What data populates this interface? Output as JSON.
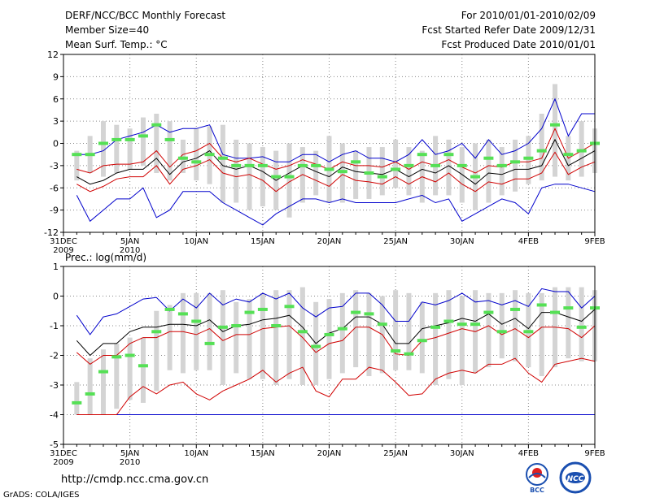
{
  "header": {
    "title": "DERF/NCC/BCC Monthly Forecast",
    "member_size": "Member Size=40",
    "variable": "Mean Surf. Temp.: °C",
    "period": "For 2010/01/01-2010/02/09",
    "fcst_started": "Fcst Started Refer Date 2009/12/31",
    "fcst_produced": "Fcst Produced Date 2010/01/01"
  },
  "footer": {
    "url": "http://cmdp.ncc.cma.gov.cn",
    "credit": "GrADS: COLA/IGES",
    "logo_left_text": "BCC",
    "logo_right_text": "NCC"
  },
  "colors": {
    "box": "#d4d4d4",
    "median": "#55e055",
    "mean": "#000000",
    "sd": "#d00000",
    "extreme": "#0000cc"
  },
  "chart_data": [
    {
      "type": "box",
      "title": "Mean Surf. Temp.: °C",
      "xlabel": "",
      "ylabel": "°C",
      "ylim": [
        -12,
        12
      ],
      "yticks": [
        -12,
        -9,
        -6,
        -3,
        0,
        3,
        6,
        9,
        12
      ],
      "xtick_labels": [
        {
          "day": 0,
          "label": "31DEC",
          "label2": "2009"
        },
        {
          "day": 5,
          "label": "5JAN",
          "label2": "2010"
        },
        {
          "day": 10,
          "label": "10JAN"
        },
        {
          "day": 15,
          "label": "15JAN"
        },
        {
          "day": 20,
          "label": "20JAN"
        },
        {
          "day": 25,
          "label": "25JAN"
        },
        {
          "day": 30,
          "label": "30JAN"
        },
        {
          "day": 35,
          "label": "4FEB"
        },
        {
          "day": 40,
          "label": "9FEB"
        }
      ],
      "days": [
        1,
        2,
        3,
        4,
        5,
        6,
        7,
        8,
        9,
        10,
        11,
        12,
        13,
        14,
        15,
        16,
        17,
        18,
        19,
        20,
        21,
        22,
        23,
        24,
        25,
        26,
        27,
        28,
        29,
        30,
        31,
        32,
        33,
        34,
        35,
        36,
        37,
        38,
        39,
        40
      ],
      "box_top": [
        -1,
        1,
        3,
        2.5,
        2,
        3.5,
        4,
        3,
        0.5,
        2,
        2.3,
        2.5,
        0.5,
        0,
        -0.5,
        -1,
        0,
        -0.5,
        -1,
        1,
        0,
        -1,
        -0.5,
        -0.5,
        0.5,
        -0.5,
        -1,
        1,
        0.5,
        -0.5,
        0,
        0.5,
        -0.5,
        0.5,
        1,
        4,
        8,
        1,
        3,
        2
      ],
      "box_bottom": [
        -5,
        -4,
        -4.5,
        -4,
        -3.5,
        -3,
        -4,
        -5,
        -4,
        -5,
        -5.5,
        -8,
        -8,
        -9,
        -8.5,
        -9,
        -10,
        -8,
        -7,
        -8,
        -8,
        -7.5,
        -7.5,
        -7,
        -6,
        -7,
        -8,
        -7,
        -7,
        -8,
        -9,
        -8,
        -7,
        -6.5,
        -5.5,
        -5,
        -4.5,
        -5,
        -4.5,
        -4
      ],
      "median": [
        -1.5,
        -1.5,
        0,
        0.5,
        0.5,
        1,
        2.5,
        0.5,
        -2,
        -2.5,
        -1.5,
        -2,
        -3,
        -3,
        -3,
        -4.5,
        -4.5,
        -3,
        -3,
        -3.5,
        -3.8,
        -2.5,
        -4,
        -4.5,
        -3.5,
        -3,
        -1.5,
        -3,
        -1.5,
        -3,
        -4.5,
        -2,
        -3,
        -2.5,
        -2,
        -1,
        2.5,
        -1.5,
        -1,
        0
      ],
      "mean": [
        -4.5,
        -5.5,
        -5,
        -4,
        -3.5,
        -3.5,
        -2,
        -4.2,
        -2.5,
        -2,
        -1,
        -3,
        -3.5,
        -3,
        -3.8,
        -5,
        -4,
        -3,
        -3.8,
        -4.5,
        -3.2,
        -3.8,
        -4,
        -4.2,
        -3.5,
        -4.5,
        -3.5,
        -4,
        -3,
        -4.2,
        -5.5,
        -4,
        -4.2,
        -3.5,
        -3.5,
        -3,
        0.5,
        -3,
        -2,
        -1
      ],
      "sd_upper": [
        -3.5,
        -4,
        -3,
        -2.8,
        -2.8,
        -2.5,
        -1,
        -3.2,
        -1.5,
        -1,
        0,
        -2,
        -2.5,
        -2,
        -2.8,
        -3.5,
        -3,
        -2.2,
        -2.8,
        -3.5,
        -2.5,
        -3,
        -3,
        -3.2,
        -2.5,
        -3.5,
        -2.5,
        -3,
        -2.2,
        -3.2,
        -4,
        -3,
        -3.2,
        -2.5,
        -2.5,
        -2,
        2,
        -2,
        -1,
        0
      ],
      "sd_lower": [
        -5.5,
        -6.5,
        -5.8,
        -4.8,
        -4.5,
        -4.5,
        -3,
        -5.5,
        -3.5,
        -3,
        -2.2,
        -4,
        -4.5,
        -4.2,
        -5,
        -6.5,
        -5.2,
        -4.2,
        -5,
        -5.8,
        -4.2,
        -5,
        -5.2,
        -5.5,
        -4.5,
        -5.5,
        -4.5,
        -5.2,
        -4,
        -5.5,
        -6.5,
        -5.2,
        -5.5,
        -4.8,
        -4.8,
        -4,
        -1.2,
        -4.2,
        -3.2,
        -2.5
      ],
      "max": [
        -1.5,
        -1.5,
        -1,
        0.5,
        1,
        1.5,
        2.5,
        1.5,
        2,
        2,
        2.5,
        -1.5,
        -2,
        -2,
        -1.8,
        -2.5,
        -2.5,
        -1.5,
        -1.5,
        -2.5,
        -1.5,
        -1,
        -2,
        -2,
        -2.5,
        -1.5,
        0.5,
        -1.5,
        -1,
        0,
        -2,
        0.5,
        -1.5,
        -1,
        0,
        2,
        6,
        1,
        4,
        4
      ],
      "min": [
        -7,
        -10.5,
        -9,
        -7.5,
        -7.5,
        -6,
        -10,
        -9,
        -6.5,
        -6.5,
        -6.5,
        -8,
        -9,
        -10,
        -11,
        -9.5,
        -8.5,
        -7.5,
        -7.5,
        -8,
        -7.5,
        -8,
        -8,
        -8,
        -8,
        -7.5,
        -7,
        -8,
        -7.5,
        -10.5,
        -9.5,
        -8.5,
        -7.5,
        -8,
        -9.5,
        -6,
        -5.5,
        -5.5,
        -6,
        -6.5
      ]
    },
    {
      "type": "box",
      "title": "Prec.: log(mm/d)",
      "xlabel": "",
      "ylabel": "log(mm/d)",
      "ylim": [
        -5,
        1
      ],
      "yticks": [
        -5,
        -4,
        -3,
        -2,
        -1,
        0,
        1
      ],
      "xtick_labels": [
        {
          "day": 0,
          "label": "31DEC",
          "label2": "2009"
        },
        {
          "day": 5,
          "label": "5JAN",
          "label2": "2010"
        },
        {
          "day": 10,
          "label": "10JAN"
        },
        {
          "day": 15,
          "label": "15JAN"
        },
        {
          "day": 20,
          "label": "20JAN"
        },
        {
          "day": 25,
          "label": "25JAN"
        },
        {
          "day": 30,
          "label": "30JAN"
        },
        {
          "day": 35,
          "label": "4FEB"
        },
        {
          "day": 40,
          "label": "9FEB"
        }
      ],
      "days": [
        1,
        2,
        3,
        4,
        5,
        6,
        7,
        8,
        9,
        10,
        11,
        12,
        13,
        14,
        15,
        16,
        17,
        18,
        19,
        20,
        21,
        22,
        23,
        24,
        25,
        26,
        27,
        28,
        29,
        30,
        31,
        32,
        33,
        34,
        35,
        36,
        37,
        38,
        39,
        40
      ],
      "box_top": [
        -2.9,
        -2.1,
        -1.8,
        -1.6,
        -1.4,
        -1.4,
        -0.5,
        -0.3,
        0.1,
        0.1,
        0.1,
        0.2,
        -0.2,
        -0.1,
        0.1,
        0.2,
        0.2,
        0.3,
        -0.2,
        -0.1,
        0.1,
        0.2,
        0.1,
        0,
        0.2,
        0.1,
        -0.2,
        0.1,
        0.2,
        0,
        0.2,
        0.1,
        0.1,
        0.2,
        0.1,
        0.1,
        0.3,
        0.3,
        0.3,
        0.2
      ],
      "box_bottom": [
        -4,
        -4,
        -4,
        -3.8,
        -3.5,
        -3.6,
        -3.2,
        -2.5,
        -2.6,
        -2.5,
        -2.5,
        -3,
        -2.6,
        -2.8,
        -2.8,
        -3,
        -2.8,
        -3,
        -3,
        -2.8,
        -2.6,
        -2.4,
        -2.7,
        -2.6,
        -2.5,
        -2.5,
        -2.6,
        -3,
        -2.8,
        -3,
        -2.6,
        -2.4,
        -2.1,
        -2.2,
        -2.4,
        -2.7,
        -2.4,
        -2.1,
        -2.2,
        -2.2
      ],
      "median": [
        -3.6,
        -3.3,
        -2.55,
        -2.05,
        -2,
        -2.35,
        -1.2,
        -0.45,
        -0.6,
        -0.85,
        -1.6,
        -1.05,
        -1,
        -0.55,
        -0.45,
        -1,
        -0.35,
        -1.2,
        -1.7,
        -1.3,
        -1.1,
        -0.55,
        -0.6,
        -0.95,
        -1.85,
        -1.95,
        -1.5,
        -1.05,
        -0.85,
        -0.95,
        -0.95,
        -0.55,
        -1.2,
        -0.45,
        -1.2,
        -0.3,
        -0.55,
        -0.4,
        -1.05,
        -0.4
      ],
      "mean": [
        -1.5,
        -2,
        -1.6,
        -1.6,
        -1.2,
        -1.05,
        -1.05,
        -0.95,
        -0.95,
        -1,
        -0.8,
        -1.2,
        -1,
        -0.95,
        -0.8,
        -0.75,
        -0.65,
        -1.05,
        -1.6,
        -1.25,
        -1.1,
        -0.7,
        -0.7,
        -0.95,
        -1.6,
        -1.6,
        -1.1,
        -1,
        -0.9,
        -0.75,
        -0.85,
        -0.6,
        -0.95,
        -0.75,
        -1.1,
        -0.55,
        -0.55,
        -0.7,
        -0.85,
        -0.45
      ],
      "sd_upper": [
        -1.9,
        -2.3,
        -2,
        -2,
        -1.6,
        -1.4,
        -1.4,
        -1.2,
        -1.2,
        -1.3,
        -1.1,
        -1.5,
        -1.3,
        -1.3,
        -1.1,
        -1.05,
        -1,
        -1.4,
        -1.9,
        -1.6,
        -1.5,
        -1.05,
        -1.05,
        -1.3,
        -1.95,
        -2,
        -1.5,
        -1.4,
        -1.25,
        -1.1,
        -1.2,
        -1,
        -1.3,
        -1.1,
        -1.4,
        -1.05,
        -1.05,
        -1.1,
        -1.4,
        -1
      ],
      "sd_lower": [
        -4,
        -4,
        -4,
        -4,
        -3.4,
        -3.05,
        -3.3,
        -3,
        -2.9,
        -3.3,
        -3.5,
        -3.2,
        -3,
        -2.8,
        -2.5,
        -2.9,
        -2.6,
        -2.4,
        -3.2,
        -3.4,
        -2.8,
        -2.8,
        -2.4,
        -2.5,
        -2.9,
        -3.35,
        -3.3,
        -2.8,
        -2.6,
        -2.5,
        -2.6,
        -2.3,
        -2.3,
        -2.1,
        -2.6,
        -2.9,
        -2.3,
        -2.2,
        -2.1,
        -2.2
      ],
      "max": [
        -0.65,
        -1.3,
        -0.7,
        -0.6,
        -0.35,
        -0.1,
        -0.05,
        -0.5,
        -0.1,
        -0.4,
        0.1,
        -0.3,
        -0.1,
        -0.2,
        0.1,
        -0.1,
        0.1,
        -0.4,
        -0.7,
        -0.4,
        -0.35,
        0.1,
        0.1,
        -0.3,
        -0.85,
        -0.85,
        -0.2,
        -0.3,
        -0.15,
        0.1,
        -0.2,
        -0.15,
        -0.3,
        -0.15,
        -0.35,
        0.25,
        0.15,
        0.15,
        -0.4,
        0
      ],
      "min": [
        -4,
        -4,
        -4,
        -4,
        -4,
        -4,
        -4,
        -4,
        -4,
        -4,
        -4,
        -4,
        -4,
        -4,
        -4,
        -4,
        -4,
        -4,
        -4,
        -4,
        -4,
        -4,
        -4,
        -4,
        -4,
        -4,
        -4,
        -4,
        -4,
        -4,
        -4,
        -4,
        -4,
        -4,
        -4,
        -4,
        -4,
        -4,
        -4,
        -4
      ]
    }
  ]
}
